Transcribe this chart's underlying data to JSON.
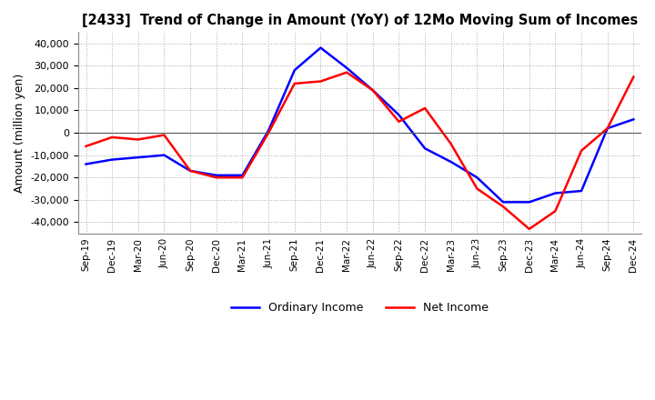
{
  "title": "[2433]  Trend of Change in Amount (YoY) of 12Mo Moving Sum of Incomes",
  "ylabel": "Amount (million yen)",
  "ylim": [
    -45000,
    45000
  ],
  "yticks": [
    -40000,
    -30000,
    -20000,
    -10000,
    0,
    10000,
    20000,
    30000,
    40000
  ],
  "ordinary_income_color": "#0000FF",
  "net_income_color": "#FF0000",
  "background_color": "#FFFFFF",
  "grid_color": "#AAAAAA",
  "labels": [
    "Ordinary Income",
    "Net Income"
  ],
  "x_labels": [
    "Sep-19",
    "Dec-19",
    "Mar-20",
    "Jun-20",
    "Sep-20",
    "Dec-20",
    "Mar-21",
    "Jun-21",
    "Sep-21",
    "Dec-21",
    "Mar-22",
    "Jun-22",
    "Sep-22",
    "Dec-22",
    "Mar-23",
    "Jun-23",
    "Sep-23",
    "Dec-23",
    "Mar-24",
    "Jun-24",
    "Sep-24",
    "Dec-24"
  ],
  "ordinary_income": [
    -14000,
    -12000,
    -11000,
    -10000,
    -17000,
    -19000,
    -19000,
    1000,
    28000,
    38000,
    29000,
    19000,
    8000,
    -7000,
    -13000,
    -20000,
    -31000,
    -31000,
    -27000,
    -26000,
    2000,
    6000
  ],
  "net_income": [
    -6000,
    -2000,
    -3000,
    -1000,
    -17000,
    -20000,
    -20000,
    0,
    22000,
    23000,
    27000,
    19000,
    5000,
    11000,
    -5000,
    -25000,
    -33000,
    -43000,
    -35000,
    -8000,
    2000,
    25000
  ]
}
